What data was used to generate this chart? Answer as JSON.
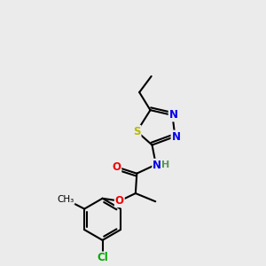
{
  "background_color": "#ebebeb",
  "bond_color": "#000000",
  "atom_colors": {
    "S": "#b8b800",
    "N": "#0000ee",
    "O": "#ee0000",
    "Cl": "#00aa00",
    "C": "#000000",
    "H": "#559955"
  },
  "figsize": [
    3.0,
    3.0
  ],
  "dpi": 100
}
